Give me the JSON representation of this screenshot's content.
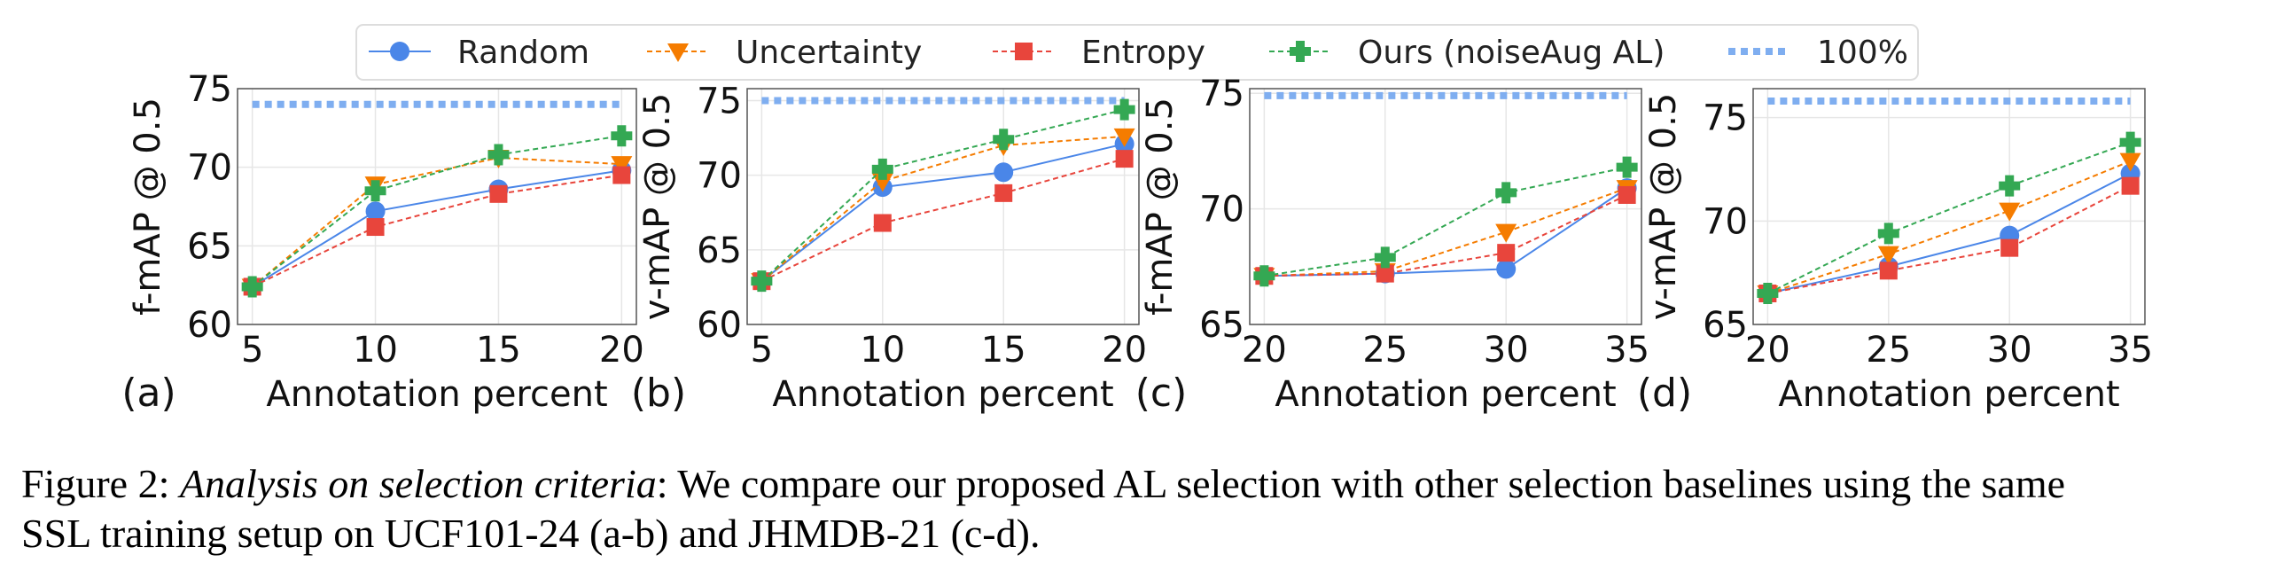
{
  "legend": [
    {
      "name": "Random",
      "color": "#4A86E8",
      "marker": "circle",
      "dash": "solid"
    },
    {
      "name": "Uncertainty",
      "color": "#F57C00",
      "marker": "triangle-down",
      "dash": "dashed"
    },
    {
      "name": "Entropy",
      "color": "#E8453C",
      "marker": "square",
      "dash": "dashed"
    },
    {
      "name": "Ours (noiseAug AL)",
      "color": "#34A853",
      "marker": "plus",
      "dash": "dashed"
    },
    {
      "name": "100%",
      "color": "#7FAEF0",
      "marker": "none",
      "dash": "dotted"
    }
  ],
  "caption": {
    "prefix": "Figure 2: ",
    "title": "Analysis on selection criteria",
    "line1_rest": ": We compare our proposed AL selection with other selection baselines using the same",
    "line2": "SSL training setup on UCF101-24 (a-b) and JHMDB-21 (c-d)."
  },
  "chart_data": [
    {
      "type": "line",
      "panel_label": "(a)",
      "xlabel": "Annotation percent",
      "ylabel": "f-mAP @ 0.5",
      "x": [
        5,
        10,
        15,
        20
      ],
      "xlim": [
        4.4,
        20.6
      ],
      "ylim": [
        60,
        75
      ],
      "yticks": [
        60,
        65,
        70,
        75
      ],
      "reference_100": 74,
      "grid": true,
      "series": [
        {
          "name": "Random",
          "values": [
            62.4,
            67.2,
            68.6,
            69.8
          ]
        },
        {
          "name": "Uncertainty",
          "values": [
            62.4,
            68.9,
            70.6,
            70.2
          ]
        },
        {
          "name": "Entropy",
          "values": [
            62.4,
            66.2,
            68.3,
            69.5
          ]
        },
        {
          "name": "Ours (noiseAug AL)",
          "values": [
            62.4,
            68.5,
            70.8,
            72.0
          ]
        }
      ]
    },
    {
      "type": "line",
      "panel_label": "(b)",
      "xlabel": "Annotation percent",
      "ylabel": "v-mAP @ 0.5",
      "x": [
        5,
        10,
        15,
        20
      ],
      "xlim": [
        4.4,
        20.6
      ],
      "ylim": [
        60,
        75.8
      ],
      "yticks": [
        60,
        65,
        70,
        75
      ],
      "reference_100": 75,
      "grid": true,
      "series": [
        {
          "name": "Random",
          "values": [
            62.9,
            69.2,
            70.2,
            72.1
          ]
        },
        {
          "name": "Uncertainty",
          "values": [
            62.9,
            69.6,
            72.0,
            72.6
          ]
        },
        {
          "name": "Entropy",
          "values": [
            62.9,
            66.8,
            68.8,
            71.1
          ]
        },
        {
          "name": "Ours (noiseAug AL)",
          "values": [
            62.9,
            70.4,
            72.4,
            74.4
          ]
        }
      ]
    },
    {
      "type": "line",
      "panel_label": "(c)",
      "xlabel": "Annotation percent",
      "ylabel": "f-mAP @ 0.5",
      "x": [
        20,
        25,
        30,
        35
      ],
      "xlim": [
        19.4,
        35.6
      ],
      "ylim": [
        65,
        75.2
      ],
      "yticks": [
        65,
        70,
        75
      ],
      "reference_100": 74.9,
      "grid": true,
      "series": [
        {
          "name": "Random",
          "values": [
            67.1,
            67.2,
            67.4,
            70.9
          ]
        },
        {
          "name": "Uncertainty",
          "values": [
            67.1,
            67.3,
            69.0,
            70.9
          ]
        },
        {
          "name": "Entropy",
          "values": [
            67.1,
            67.2,
            68.1,
            70.6
          ]
        },
        {
          "name": "Ours (noiseAug AL)",
          "values": [
            67.1,
            67.9,
            70.7,
            71.8
          ]
        }
      ]
    },
    {
      "type": "line",
      "panel_label": "(d)",
      "xlabel": "Annotation percent",
      "ylabel": "v-mAP @ 0.5",
      "x": [
        20,
        25,
        30,
        35
      ],
      "xlim": [
        19.4,
        35.6
      ],
      "ylim": [
        65,
        76.4
      ],
      "yticks": [
        65,
        70,
        75
      ],
      "reference_100": 75.8,
      "grid": true,
      "series": [
        {
          "name": "Random",
          "values": [
            66.5,
            67.8,
            69.3,
            72.3
          ]
        },
        {
          "name": "Uncertainty",
          "values": [
            66.5,
            68.4,
            70.5,
            72.9
          ]
        },
        {
          "name": "Entropy",
          "values": [
            66.5,
            67.6,
            68.7,
            71.7
          ]
        },
        {
          "name": "Ours (noiseAug AL)",
          "values": [
            66.5,
            69.4,
            71.7,
            73.8
          ]
        }
      ]
    }
  ]
}
